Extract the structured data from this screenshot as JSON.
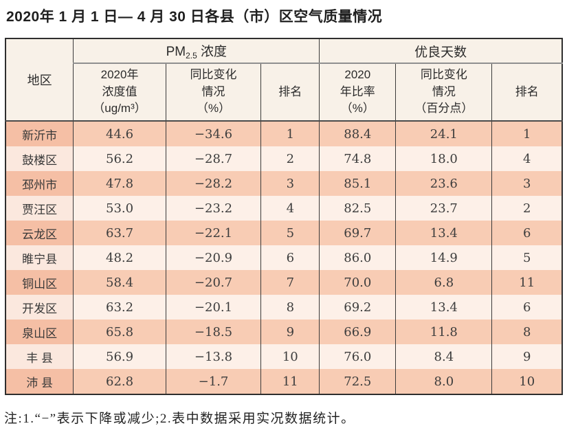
{
  "page": {
    "title": "2020年 1 月 1 日— 4 月 30 日各县（市）区空气质量情况",
    "note": "注:1.“−”表示下降或减少;2.表中数据采用实况数据统计。"
  },
  "table": {
    "header": {
      "region": "地区",
      "pm_group": {
        "prefix": "PM",
        "sub": "2.5",
        "suffix": " 浓度"
      },
      "days_group": "优良天数",
      "pm_cols": [
        "2020年\n浓度值\n（ug/m³）",
        "同比变化\n情况\n（%）",
        "排名"
      ],
      "days_cols": [
        "2020\n年比率\n（%）",
        "同比变化\n情况\n（百分点）",
        "排名"
      ]
    },
    "rows": [
      {
        "region": "新沂市",
        "pm_value": "44.6",
        "pm_change": "−34.6",
        "pm_rank": "1",
        "days_ratio": "88.4",
        "days_change": "24.1",
        "days_rank": "1"
      },
      {
        "region": "鼓楼区",
        "pm_value": "56.2",
        "pm_change": "−28.7",
        "pm_rank": "2",
        "days_ratio": "74.8",
        "days_change": "18.0",
        "days_rank": "4"
      },
      {
        "region": "邳州市",
        "pm_value": "47.8",
        "pm_change": "−28.2",
        "pm_rank": "3",
        "days_ratio": "85.1",
        "days_change": "23.6",
        "days_rank": "3"
      },
      {
        "region": "贾汪区",
        "pm_value": "53.0",
        "pm_change": "−23.2",
        "pm_rank": "4",
        "days_ratio": "82.5",
        "days_change": "23.7",
        "days_rank": "2"
      },
      {
        "region": "云龙区",
        "pm_value": "63.7",
        "pm_change": "−22.1",
        "pm_rank": "5",
        "days_ratio": "69.7",
        "days_change": "13.4",
        "days_rank": "6"
      },
      {
        "region": "睢宁县",
        "pm_value": "48.2",
        "pm_change": "−20.9",
        "pm_rank": "6",
        "days_ratio": "86.0",
        "days_change": "14.9",
        "days_rank": "5"
      },
      {
        "region": "铜山区",
        "pm_value": "58.4",
        "pm_change": "−20.7",
        "pm_rank": "7",
        "days_ratio": "70.0",
        "days_change": "6.8",
        "days_rank": "11"
      },
      {
        "region": "开发区",
        "pm_value": "63.2",
        "pm_change": "−20.1",
        "pm_rank": "8",
        "days_ratio": "69.2",
        "days_change": "13.4",
        "days_rank": "6"
      },
      {
        "region": "泉山区",
        "pm_value": "65.8",
        "pm_change": "−18.5",
        "pm_rank": "9",
        "days_ratio": "66.9",
        "days_change": "11.8",
        "days_rank": "8"
      },
      {
        "region": "丰 县",
        "pm_value": "56.9",
        "pm_change": "−13.8",
        "pm_rank": "10",
        "days_ratio": "76.0",
        "days_change": "8.4",
        "days_rank": "9"
      },
      {
        "region": "沛 县",
        "pm_value": "62.8",
        "pm_change": "−1.7",
        "pm_rank": "11",
        "days_ratio": "72.5",
        "days_change": "8.0",
        "days_rank": "10"
      }
    ],
    "colors": {
      "row_odd": "#f8ccb4",
      "row_odd_region": "#f5bfa5",
      "row_even": "#fdf0e8",
      "row_even_region": "#fbe8de",
      "header_bg": "#f8f1e8",
      "border_dark": "#3a3a3a",
      "border_light": "#8f8f8f"
    }
  }
}
